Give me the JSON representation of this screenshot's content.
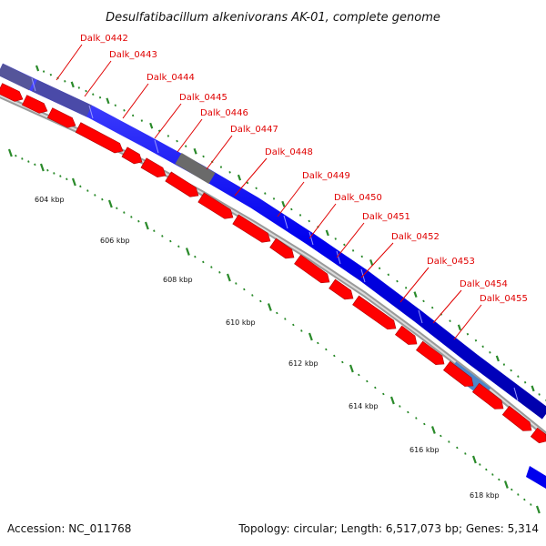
{
  "title": "Desulfatibacillum alkenivorans AK-01, complete genome",
  "footer": {
    "accession": "Accession: NC_011768",
    "summary": "Topology: circular; Length: 6,517,073 bp; Genes: 5,314"
  },
  "gene_labels": [
    "Dalk_0442",
    "Dalk_0443",
    "Dalk_0444",
    "Dalk_0445",
    "Dalk_0446",
    "Dalk_0447",
    "Dalk_0448",
    "Dalk_0449",
    "Dalk_0450",
    "Dalk_0451",
    "Dalk_0452",
    "Dalk_0453",
    "Dalk_0454",
    "Dalk_0455"
  ],
  "scale_labels": [
    "604 kbp",
    "606 kbp",
    "608 kbp",
    "610 kbp",
    "612 kbp",
    "614 kbp",
    "616 kbp",
    "618 kbp"
  ],
  "colors": {
    "forward_cds": "#0000ff",
    "reverse_cds": "#ff0000",
    "label_color": "#e00000",
    "tick_color": "#2a8a2a",
    "backbone": "#999999"
  }
}
